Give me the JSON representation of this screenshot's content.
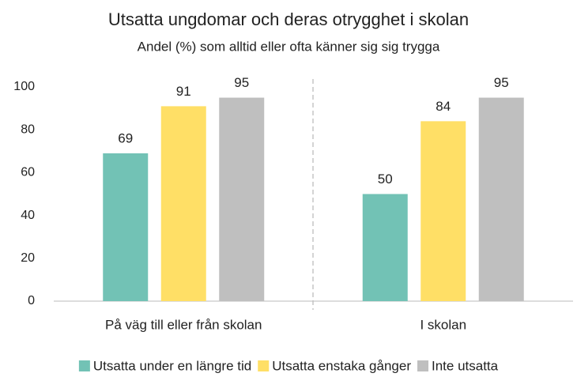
{
  "chart_data": {
    "type": "bar",
    "title": "Utsatta ungdomar och deras otrygghet i skolan",
    "subtitle": "Andel (%) som alltid eller ofta känner sig sig trygga",
    "categories": [
      "På väg till eller från skolan",
      "I skolan"
    ],
    "series": [
      {
        "name": "Utsatta under en längre tid",
        "color": "#72c2b5",
        "values": [
          69,
          50
        ]
      },
      {
        "name": "Utsatta enstaka gånger",
        "color": "#ffdf66",
        "values": [
          91,
          84
        ]
      },
      {
        "name": "Inte utsatta",
        "color": "#bfbfbf",
        "values": [
          95,
          95
        ]
      }
    ],
    "ylim": [
      0,
      100
    ],
    "yticks": [
      0,
      20,
      40,
      60,
      80,
      100
    ],
    "grid": false,
    "legend": "bottom"
  }
}
